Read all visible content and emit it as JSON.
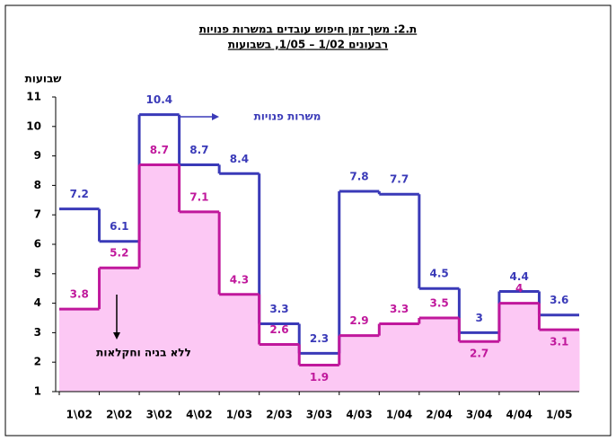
{
  "chart_data": {
    "type": "step",
    "title": "ת.2: משך זמן חיפוש עובדים במשרות פנויות",
    "subtitle": "רבעונים 1/02 – 1/05, בשבועות",
    "y_label": "שבועות",
    "categories": [
      "1\\02",
      "2\\02",
      "3\\02",
      "4\\02",
      "1/03",
      "2/03",
      "3/03",
      "4/03",
      "1/04",
      "2/04",
      "3/04",
      "4/04",
      "1/05"
    ],
    "series": [
      {
        "name": "משרות פנויות",
        "color": "#3a3ab8",
        "values": [
          7.2,
          6.1,
          10.4,
          8.7,
          8.4,
          3.3,
          2.3,
          7.8,
          7.7,
          4.5,
          3.0,
          4.4,
          3.6
        ]
      },
      {
        "name": "ללא בניה וחקלאות",
        "color": "#c0189c",
        "fill": "#fcc8f4",
        "values": [
          3.8,
          5.2,
          8.7,
          7.1,
          4.3,
          2.6,
          1.9,
          2.9,
          3.3,
          3.5,
          2.7,
          4.0,
          3.1
        ]
      }
    ],
    "ylim": [
      1,
      11
    ],
    "yticks": [
      1,
      2,
      3,
      4,
      5,
      6,
      7,
      8,
      9,
      10,
      11
    ]
  }
}
